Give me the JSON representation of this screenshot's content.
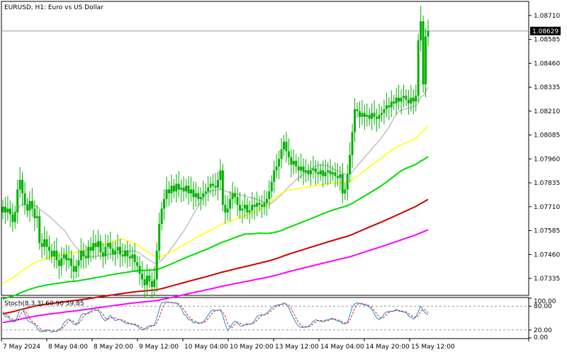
{
  "chart_data": [
    {
      "type": "candlestick",
      "title": "EURUSD, H1:  Euro vs US Dollar",
      "current_price": 1.08629,
      "ylim": [
        1.0725,
        1.0878
      ],
      "yticks": [
        1.07335,
        1.0746,
        1.07585,
        1.0771,
        1.07835,
        1.0796,
        1.08085,
        1.0821,
        1.08335,
        1.0846,
        1.08585,
        1.0871
      ],
      "yticks_label": [
        "1.07335",
        "1.07460",
        "1.07585",
        "1.07710",
        "1.07835",
        "1.07960",
        "1.08085",
        "1.08210",
        "1.08335",
        "1.08460",
        "1.08585",
        "1.08710"
      ],
      "x_labels": [
        "7 May 2024",
        "8 May 04:00",
        "8 May 20:00",
        "9 May 12:00",
        "10 May 04:00",
        "10 May 20:00",
        "13 May 12:00",
        "14 May 04:00",
        "14 May 20:00",
        "15 May 12:00"
      ],
      "close": [
        1.0771,
        1.0768,
        1.077,
        1.0767,
        1.0763,
        1.0768,
        1.078,
        1.0785,
        1.0778,
        1.0772,
        1.0769,
        1.0774,
        1.077,
        1.0765,
        1.0766,
        1.0752,
        1.075,
        1.0754,
        1.075,
        1.0748,
        1.0745,
        1.0748,
        1.0743,
        1.074,
        1.0744,
        1.0746,
        1.0743,
        1.0744,
        1.074,
        1.0737,
        1.074,
        1.0743,
        1.0748,
        1.0745,
        1.0744,
        1.075,
        1.0748,
        1.0752,
        1.075,
        1.0753,
        1.0747,
        1.0745,
        1.075,
        1.0752,
        1.0749,
        1.0746,
        1.0748,
        1.075,
        1.0746,
        1.0745,
        1.0748,
        1.0745,
        1.0744,
        1.0746,
        1.0742,
        1.074,
        1.0736,
        1.0733,
        1.073,
        1.0735,
        1.0732,
        1.0729,
        1.0733,
        1.0748,
        1.0762,
        1.077,
        1.0775,
        1.078,
        1.0778,
        1.0782,
        1.0779,
        1.0783,
        1.078,
        1.0781,
        1.0779,
        1.0782,
        1.0778,
        1.078,
        1.0776,
        1.0778,
        1.0775,
        1.0776,
        1.0778,
        1.0779,
        1.0781,
        1.0783,
        1.0782,
        1.0781,
        1.0785,
        1.079,
        1.0772,
        1.0768,
        1.077,
        1.0775,
        1.0778,
        1.0776,
        1.0772,
        1.0769,
        1.077,
        1.0772,
        1.0768,
        1.0769,
        1.0772,
        1.0771,
        1.0773,
        1.0772,
        1.0771,
        1.0773,
        1.0775,
        1.0779,
        1.0784,
        1.079,
        1.0792,
        1.0796,
        1.0801,
        1.0805,
        1.08,
        1.0797,
        1.0793,
        1.0795,
        1.0792,
        1.079,
        1.0792,
        1.0789,
        1.079,
        1.0788,
        1.079,
        1.0791,
        1.0789,
        1.0788,
        1.079,
        1.0787,
        1.0789,
        1.079,
        1.0788,
        1.0789,
        1.0787,
        1.0786,
        1.0788,
        1.0778,
        1.078,
        1.0788,
        1.0798,
        1.081,
        1.0822,
        1.0821,
        1.0818,
        1.082,
        1.0818,
        1.0819,
        1.0817,
        1.082,
        1.0818,
        1.0817,
        1.0819,
        1.082,
        1.0822,
        1.0824,
        1.0823,
        1.0826,
        1.0825,
        1.0828,
        1.0826,
        1.0828,
        1.0829,
        1.0827,
        1.0825,
        1.0828,
        1.0826,
        1.0829,
        1.0858,
        1.0868,
        1.0835,
        1.086,
        1.0863
      ],
      "series": [
        {
          "name": "MA 20",
          "color": "#c0c0c0"
        },
        {
          "name": "MA 50",
          "color": "#ffff00"
        },
        {
          "name": "MA 100",
          "color": "#00dd00"
        },
        {
          "name": "MA 200",
          "color": "#cc0000"
        },
        {
          "name": "MA 300",
          "color": "#ff00ff"
        }
      ]
    },
    {
      "type": "line",
      "title": "Stoch(8,3,3) 60.90 59.85",
      "ylim": [
        0,
        100
      ],
      "yticks_label": [
        "100.00",
        "80.00",
        "20.00",
        "0.00"
      ],
      "levels": [
        80,
        20
      ],
      "series": [
        {
          "name": "Main",
          "color": "#1d8fd0"
        },
        {
          "name": "Signal",
          "color": "#d01f1f"
        }
      ]
    }
  ]
}
